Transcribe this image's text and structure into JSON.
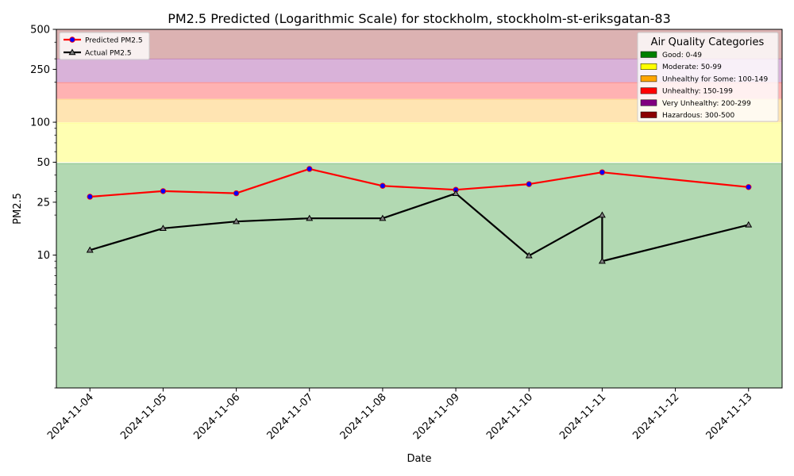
{
  "chart_data": {
    "type": "line",
    "title": "PM2.5 Predicted (Logarithmic Scale) for stockholm, stockholm-st-eriksgatan-83",
    "xlabel": "Date",
    "ylabel": "PM2.5",
    "yscale": "log",
    "ylim": [
      1,
      500
    ],
    "xlim": [
      "2024-11-03T13:00",
      "2024-11-13T11:00"
    ],
    "x_ticks": [
      "2024-11-04",
      "2024-11-05",
      "2024-11-06",
      "2024-11-07",
      "2024-11-08",
      "2024-11-09",
      "2024-11-10",
      "2024-11-11",
      "2024-11-12",
      "2024-11-13"
    ],
    "y_ticks": [
      {
        "value": 10,
        "label": "10"
      },
      {
        "value": 25,
        "label": "25"
      },
      {
        "value": 50,
        "label": "50"
      },
      {
        "value": 100,
        "label": "100"
      },
      {
        "value": 250,
        "label": "250"
      },
      {
        "value": 500,
        "label": "500"
      }
    ],
    "grid": false,
    "series": [
      {
        "name": "Predicted PM2.5",
        "color": "#ff0000",
        "marker": "circle",
        "marker_color": "#0000ff",
        "points": [
          {
            "x": "2024-11-04T00:00",
            "y": 27.5
          },
          {
            "x": "2024-11-05T00:00",
            "y": 30.3
          },
          {
            "x": "2024-11-06T00:00",
            "y": 29.2
          },
          {
            "x": "2024-11-07T00:00",
            "y": 44.5
          },
          {
            "x": "2024-11-08T00:00",
            "y": 33.2
          },
          {
            "x": "2024-11-09T00:00",
            "y": 31.0
          },
          {
            "x": "2024-11-10T00:00",
            "y": 34.2
          },
          {
            "x": "2024-11-11T00:00",
            "y": 42.0
          },
          {
            "x": "2024-11-13T00:00",
            "y": 32.5
          }
        ]
      },
      {
        "name": "Actual PM2.5",
        "color": "#000000",
        "marker": "triangle",
        "marker_color": "#808080",
        "points": [
          {
            "x": "2024-11-04T00:00",
            "y": 10.9
          },
          {
            "x": "2024-11-05T00:00",
            "y": 15.9
          },
          {
            "x": "2024-11-06T00:00",
            "y": 17.9
          },
          {
            "x": "2024-11-07T00:00",
            "y": 18.9
          },
          {
            "x": "2024-11-08T00:00",
            "y": 18.9
          },
          {
            "x": "2024-11-09T00:00",
            "y": 29.1
          },
          {
            "x": "2024-11-10T00:00",
            "y": 9.9
          },
          {
            "x": "2024-11-11T00:00",
            "y": 20.0
          },
          {
            "x": "2024-11-11T00:00",
            "y": 9.0
          },
          {
            "x": "2024-11-13T00:00",
            "y": 16.9
          }
        ]
      }
    ],
    "bands": [
      {
        "label": "Good: 0-49",
        "from": 0,
        "to": 49,
        "color": "#008000"
      },
      {
        "label": "Moderate: 50-99",
        "from": 50,
        "to": 99,
        "color": "#ffff00"
      },
      {
        "label": "Unhealthy for Some: 100-149",
        "from": 100,
        "to": 149,
        "color": "#ffa500"
      },
      {
        "label": "Unhealthy: 150-199",
        "from": 150,
        "to": 199,
        "color": "#ff0000"
      },
      {
        "label": "Very Unhealthy: 200-299",
        "from": 200,
        "to": 299,
        "color": "#800080"
      },
      {
        "label": "Hazardous: 300-500",
        "from": 300,
        "to": 500,
        "color": "#8b0000"
      }
    ],
    "band_legend_title": "Air Quality Categories",
    "series_legend_position": "top-left",
    "band_legend_position": "top-right"
  }
}
